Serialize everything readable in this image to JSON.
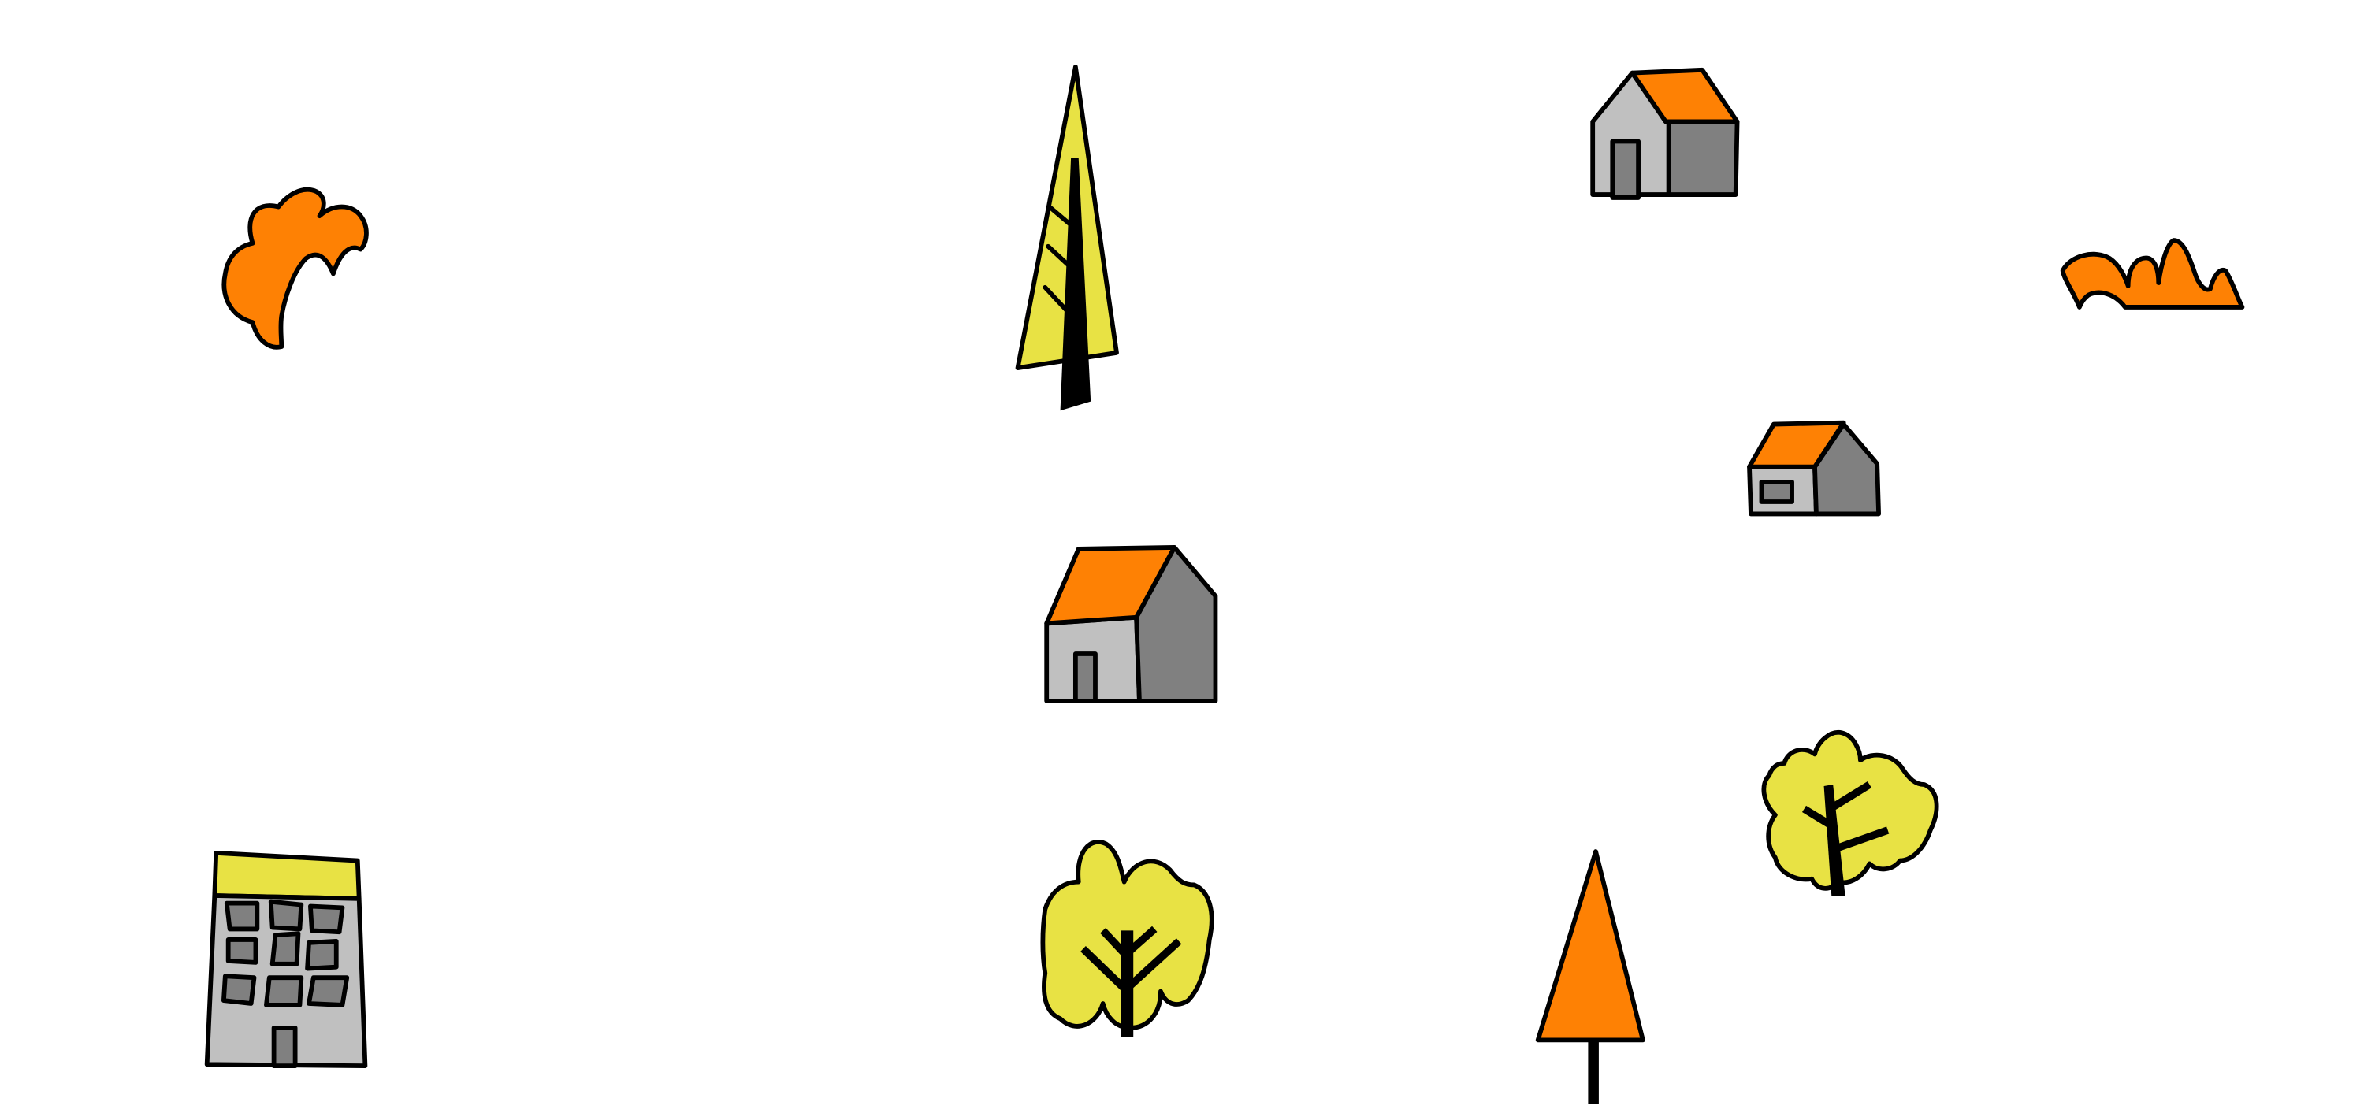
{
  "palette": {
    "orange": "#fe8104",
    "yellow": "#e8e244",
    "light_gray": "#c0c0c0",
    "dark_gray": "#808080",
    "outline": "#000000",
    "background": "#ffffff"
  },
  "scene": {
    "items": [
      {
        "kind": "bush",
        "color": "orange"
      },
      {
        "kind": "pine-tree",
        "color": "yellow"
      },
      {
        "kind": "house",
        "roof": "orange"
      },
      {
        "kind": "shrub",
        "color": "orange"
      },
      {
        "kind": "house-small",
        "roof": "orange"
      },
      {
        "kind": "house",
        "roof": "orange"
      },
      {
        "kind": "deciduous-tree",
        "color": "yellow"
      },
      {
        "kind": "apartment-building",
        "roof": "yellow"
      },
      {
        "kind": "deciduous-tree",
        "color": "yellow"
      },
      {
        "kind": "cone-tree",
        "color": "orange"
      }
    ]
  }
}
